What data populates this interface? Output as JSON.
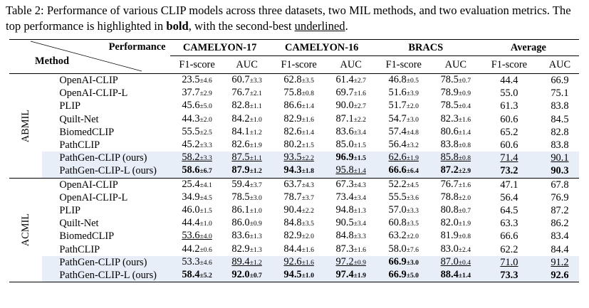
{
  "caption": {
    "prefix": "Table 2: Performance of various CLIP models across three datasets, two MIL methods, and two evaluation metrics. The top performance is highlighted in ",
    "bold_word": "bold",
    "middle": ", with the second-best ",
    "underline_word": "underlined",
    "suffix": "."
  },
  "header": {
    "performance_label": "Performance",
    "method_label": "Method",
    "datasets": [
      "CAMELYON-17",
      "CAMELYON-16",
      "BRACS",
      "Average"
    ],
    "metrics": [
      "F1-score",
      "AUC",
      "F1-score",
      "AUC",
      "F1-score",
      "AUC",
      "F1-score",
      "AUC"
    ]
  },
  "groups": [
    {
      "label": "ABMIL",
      "rows": [
        {
          "name": "OpenAI-CLIP",
          "highlight": false,
          "cells": [
            {
              "v": "23.5",
              "sd": "±4.6"
            },
            {
              "v": "60.7",
              "sd": "±3.3"
            },
            {
              "v": "62.8",
              "sd": "±3.5"
            },
            {
              "v": "61.4",
              "sd": "±2.7"
            },
            {
              "v": "46.8",
              "sd": "±0.5"
            },
            {
              "v": "78.5",
              "sd": "±0.7"
            },
            {
              "v": "44.4"
            },
            {
              "v": "66.9"
            }
          ]
        },
        {
          "name": "OpenAI-CLIP-L",
          "highlight": false,
          "cells": [
            {
              "v": "37.7",
              "sd": "±2.9"
            },
            {
              "v": "76.7",
              "sd": "±2.1"
            },
            {
              "v": "75.8",
              "sd": "±0.8"
            },
            {
              "v": "69.7",
              "sd": "±1.6"
            },
            {
              "v": "51.6",
              "sd": "±3.9"
            },
            {
              "v": "78.9",
              "sd": "±0.9"
            },
            {
              "v": "55.0"
            },
            {
              "v": "75.1"
            }
          ]
        },
        {
          "name": "PLIP",
          "highlight": false,
          "cells": [
            {
              "v": "45.6",
              "sd": "±5.0"
            },
            {
              "v": "82.8",
              "sd": "±1.1"
            },
            {
              "v": "86.6",
              "sd": "±1.4"
            },
            {
              "v": "90.0",
              "sd": "±2.7"
            },
            {
              "v": "51.7",
              "sd": "±2.0"
            },
            {
              "v": "78.5",
              "sd": "±0.4"
            },
            {
              "v": "61.3"
            },
            {
              "v": "83.8"
            }
          ]
        },
        {
          "name": "Quilt-Net",
          "highlight": false,
          "cells": [
            {
              "v": "44.3",
              "sd": "±2.0"
            },
            {
              "v": "84.2",
              "sd": "±1.0"
            },
            {
              "v": "82.9",
              "sd": "±1.6"
            },
            {
              "v": "87.1",
              "sd": "±2.2"
            },
            {
              "v": "54.7",
              "sd": "±3.0"
            },
            {
              "v": "82.3",
              "sd": "±1.6"
            },
            {
              "v": "60.6"
            },
            {
              "v": "84.5"
            }
          ]
        },
        {
          "name": "BiomedCLIP",
          "highlight": false,
          "cells": [
            {
              "v": "55.5",
              "sd": "±2.5"
            },
            {
              "v": "84.1",
              "sd": "±1.2"
            },
            {
              "v": "82.6",
              "sd": "±1.4"
            },
            {
              "v": "83.6",
              "sd": "±3.4"
            },
            {
              "v": "57.4",
              "sd": "±4.8"
            },
            {
              "v": "80.6",
              "sd": "±1.4"
            },
            {
              "v": "65.2"
            },
            {
              "v": "82.8"
            }
          ]
        },
        {
          "name": "PathCLIP",
          "highlight": false,
          "cells": [
            {
              "v": "45.2",
              "sd": "±3.3"
            },
            {
              "v": "82.6",
              "sd": "±1.9"
            },
            {
              "v": "80.2",
              "sd": "±1.5"
            },
            {
              "v": "85.0",
              "sd": "±1.5"
            },
            {
              "v": "56.4",
              "sd": "±3.2"
            },
            {
              "v": "83.8",
              "sd": "±0.8"
            },
            {
              "v": "60.6"
            },
            {
              "v": "83.8"
            }
          ]
        },
        {
          "name": "PathGen-CLIP (ours)",
          "highlight": true,
          "cells": [
            {
              "v": "58.2",
              "sd": "±3.3",
              "u": true
            },
            {
              "v": "87.5",
              "sd": "±1.1",
              "u": true
            },
            {
              "v": "93.5",
              "sd": "±2.2",
              "u": true
            },
            {
              "v": "96.9",
              "sd": "±1.5",
              "b": true
            },
            {
              "v": "62.6",
              "sd": "±1.9",
              "u": true
            },
            {
              "v": "85.8",
              "sd": "±0.8",
              "u": true
            },
            {
              "v": "71.4",
              "u": true
            },
            {
              "v": "90.1",
              "u": true
            }
          ]
        },
        {
          "name": "PathGen-CLIP-L (ours)",
          "highlight": true,
          "cells": [
            {
              "v": "58.6",
              "sd": "±6.7",
              "b": true
            },
            {
              "v": "87.9",
              "sd": "±1.2",
              "b": true
            },
            {
              "v": "94.3",
              "sd": "±1.8",
              "b": true
            },
            {
              "v": "95.8",
              "sd": "±1.4",
              "u": true
            },
            {
              "v": "66.6",
              "sd": "±6.4",
              "b": true
            },
            {
              "v": "87.2",
              "sd": "±2.9",
              "b": true
            },
            {
              "v": "73.2",
              "b": true
            },
            {
              "v": "90.3",
              "b": true
            }
          ]
        }
      ]
    },
    {
      "label": "ACMIL",
      "rows": [
        {
          "name": "OpenAI-CLIP",
          "highlight": false,
          "cells": [
            {
              "v": "25.4",
              "sd": "±4.1"
            },
            {
              "v": "59.4",
              "sd": "±3.7"
            },
            {
              "v": "63.7",
              "sd": "±4.3"
            },
            {
              "v": "67.3",
              "sd": "±4.3"
            },
            {
              "v": "52.2",
              "sd": "±4.5"
            },
            {
              "v": "76.7",
              "sd": "±1.6"
            },
            {
              "v": "47.1"
            },
            {
              "v": "67.8"
            }
          ]
        },
        {
          "name": "OpenAI-CLIP-L",
          "highlight": false,
          "cells": [
            {
              "v": "34.9",
              "sd": "±4.5"
            },
            {
              "v": "78.5",
              "sd": "±3.0"
            },
            {
              "v": "78.7",
              "sd": "±3.7"
            },
            {
              "v": "73.4",
              "sd": "±3.4"
            },
            {
              "v": "55.5",
              "sd": "±3.6"
            },
            {
              "v": "78.8",
              "sd": "±2.0"
            },
            {
              "v": "56.4"
            },
            {
              "v": "76.9"
            }
          ]
        },
        {
          "name": "PLIP",
          "highlight": false,
          "cells": [
            {
              "v": "46.0",
              "sd": "±1.5"
            },
            {
              "v": "86.1",
              "sd": "±1.0"
            },
            {
              "v": "90.4",
              "sd": "±2.2"
            },
            {
              "v": "94.8",
              "sd": "±1.3"
            },
            {
              "v": "57.0",
              "sd": "±3.3"
            },
            {
              "v": "80.8",
              "sd": "±0.7"
            },
            {
              "v": "64.5"
            },
            {
              "v": "87.2"
            }
          ]
        },
        {
          "name": "Quilt-Net",
          "highlight": false,
          "cells": [
            {
              "v": "44.4",
              "sd": "±1.0"
            },
            {
              "v": "86.0",
              "sd": "±0.9"
            },
            {
              "v": "84.8",
              "sd": "±3.5"
            },
            {
              "v": "90.5",
              "sd": "±3.4"
            },
            {
              "v": "60.8",
              "sd": "±3.5"
            },
            {
              "v": "82.0",
              "sd": "±1.9"
            },
            {
              "v": "63.3"
            },
            {
              "v": "86.2"
            }
          ]
        },
        {
          "name": "BiomedCLIP",
          "highlight": false,
          "cells": [
            {
              "v": "53.6",
              "sd": "±4.0",
              "u": true
            },
            {
              "v": "83.6",
              "sd": "±1.3"
            },
            {
              "v": "82.9",
              "sd": "±2.0"
            },
            {
              "v": "84.8",
              "sd": "±3.3"
            },
            {
              "v": "63.2",
              "sd": "±2.0"
            },
            {
              "v": "81.9",
              "sd": "±0.8"
            },
            {
              "v": "66.6"
            },
            {
              "v": "83.4"
            }
          ]
        },
        {
          "name": "PathCLIP",
          "highlight": false,
          "cells": [
            {
              "v": "44.2",
              "sd": "±0.6"
            },
            {
              "v": "82.9",
              "sd": "±1.3"
            },
            {
              "v": "84.4",
              "sd": "±1.6"
            },
            {
              "v": "87.3",
              "sd": "±1.6"
            },
            {
              "v": "58.0",
              "sd": "±7.6"
            },
            {
              "v": "83.0",
              "sd": "±2.4"
            },
            {
              "v": "62.2"
            },
            {
              "v": "84.4"
            }
          ]
        },
        {
          "name": "PathGen-CLIP (ours)",
          "highlight": true,
          "cells": [
            {
              "v": "53.3",
              "sd": "±4.6"
            },
            {
              "v": "89.4",
              "sd": "±1.2",
              "u": true
            },
            {
              "v": "92.6",
              "sd": "±1.6",
              "u": true
            },
            {
              "v": "97.2",
              "sd": "±0.9",
              "u": true
            },
            {
              "v": "66.9",
              "sd": "±3.0",
              "b": true
            },
            {
              "v": "87.0",
              "sd": "±0.4",
              "u": true
            },
            {
              "v": "71.0",
              "u": true
            },
            {
              "v": "91.2",
              "u": true
            }
          ]
        },
        {
          "name": "PathGen-CLIP-L (ours)",
          "highlight": true,
          "cells": [
            {
              "v": "58.4",
              "sd": "±5.2",
              "b": true
            },
            {
              "v": "92.0",
              "sd": "±0.7",
              "b": true
            },
            {
              "v": "94.5",
              "sd": "±1.0",
              "b": true
            },
            {
              "v": "97.4",
              "sd": "±1.9",
              "b": true
            },
            {
              "v": "66.9",
              "sd": "±5.0",
              "b": true
            },
            {
              "v": "88.4",
              "sd": "±1.4",
              "b": true
            },
            {
              "v": "73.3",
              "b": true
            },
            {
              "v": "92.6",
              "b": true
            }
          ]
        }
      ]
    }
  ]
}
